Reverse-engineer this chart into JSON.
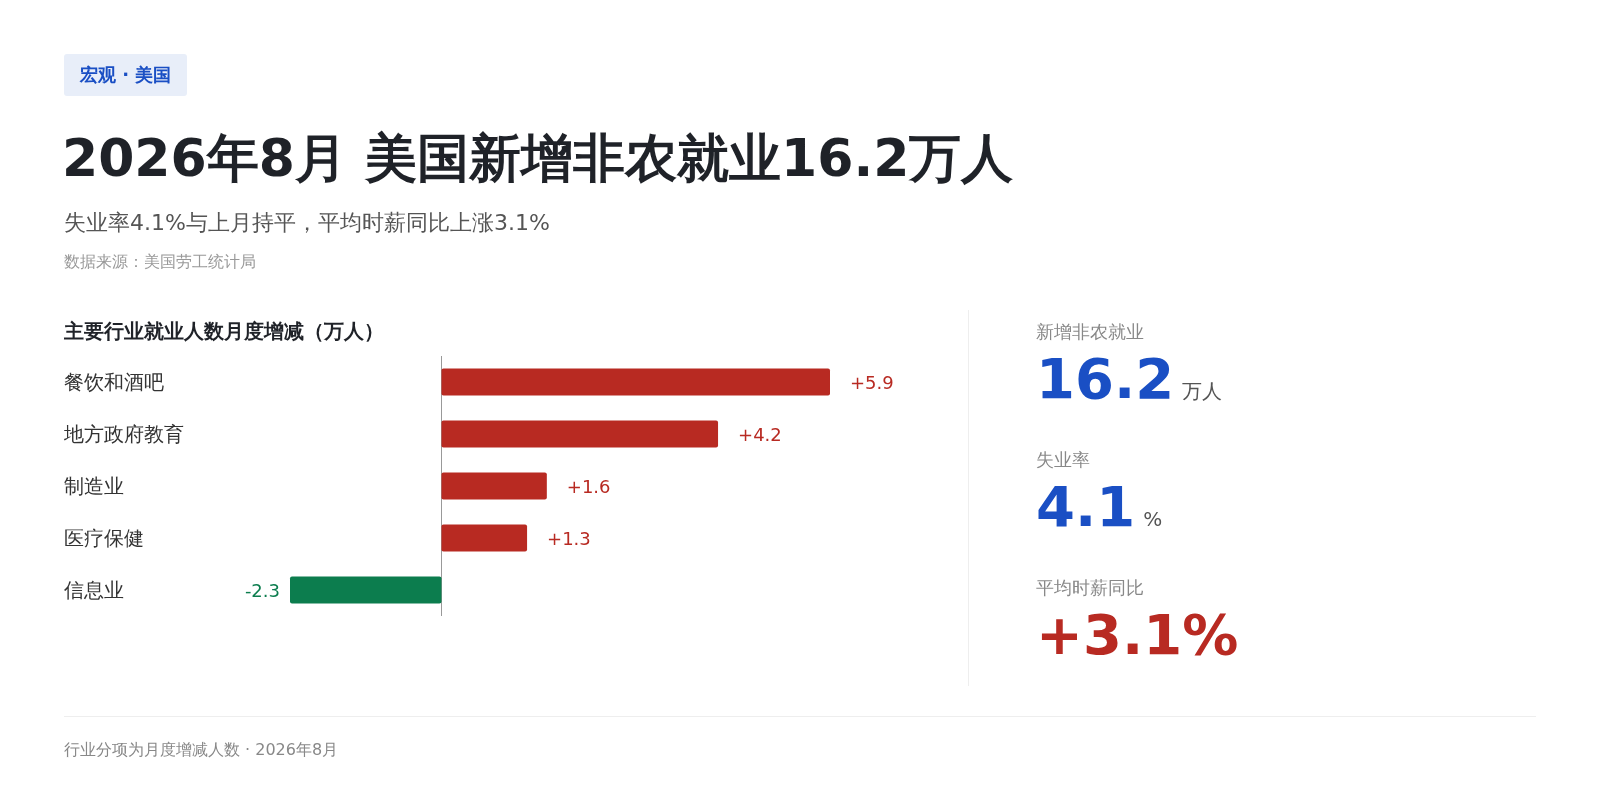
{
  "chart_data": [
    {
      "type": "other",
      "title": "2026年8月 美国新增非农就业16.2万人",
      "subtitle": "失业率4.1%与上月持平，平均时薪同比上涨3.1%",
      "annotations": [
        "宏观 · 美国",
        "数据来源：美国劳工统计局",
        "行业分项为月度增减人数 · 2026年8月"
      ]
    },
    {
      "type": "bar",
      "orientation": "horizontal",
      "title": "主要行业就业人数月度增减（万人）",
      "categories": [
        "餐饮和酒吧",
        "地方政府教育",
        "制造业",
        "医疗保健",
        "信息业"
      ],
      "values": [
        5.9,
        4.2,
        1.6,
        1.3,
        -2.3
      ],
      "colors": [
        "#b82a22",
        "#b82a22",
        "#b82a22",
        "#b82a22",
        "#0c7d4e"
      ],
      "value_labels": [
        "+5.9",
        "+4.2",
        "+1.6",
        "+1.3",
        "-2.3"
      ],
      "tick_labels": "y"
    },
    {
      "type": "other",
      "annotations": [
        "新增非农就业",
        "16.2",
        "万人",
        "失业率",
        "4.1",
        "%",
        "平均时薪同比",
        "+3.1%"
      ]
    }
  ]
}
